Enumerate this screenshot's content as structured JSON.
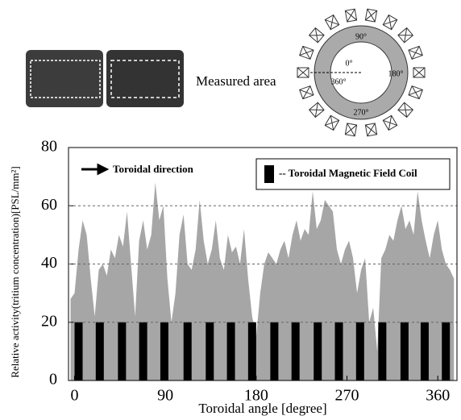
{
  "figure": {
    "measured_label": "Measured area",
    "angle_labels": [
      "90°",
      "0°",
      "360°",
      "180°",
      "270°"
    ]
  },
  "chart_data": {
    "type": "area",
    "xlabel": "Toroidal angle [degree]",
    "ylabel": "Relative activity(tritium concentration)[PSL/mm²]",
    "annotation": "Toroidal direction",
    "xlim": [
      -6,
      379
    ],
    "ylim": [
      0,
      80
    ],
    "xticks": [
      0,
      90,
      180,
      270,
      360
    ],
    "yticks": [
      0,
      20,
      40,
      60,
      80
    ],
    "grid": true,
    "series": [
      {
        "type": "area",
        "color": "#a6a6a6",
        "x": [
          -4,
          0,
          4,
          8,
          12,
          16,
          20,
          24,
          28,
          32,
          36,
          40,
          44,
          48,
          52,
          56,
          60,
          64,
          68,
          72,
          76,
          80,
          84,
          88,
          92,
          96,
          100,
          104,
          108,
          112,
          116,
          120,
          124,
          128,
          132,
          136,
          140,
          144,
          148,
          152,
          156,
          160,
          164,
          168,
          172,
          176,
          180,
          184,
          188,
          192,
          196,
          200,
          204,
          208,
          212,
          216,
          220,
          224,
          228,
          232,
          236,
          240,
          244,
          248,
          252,
          256,
          260,
          264,
          268,
          272,
          276,
          280,
          284,
          288,
          292,
          296,
          300,
          304,
          308,
          312,
          316,
          320,
          324,
          328,
          332,
          336,
          340,
          344,
          348,
          352,
          356,
          360,
          364,
          368,
          372,
          376
        ],
        "values": [
          28,
          30,
          45,
          55,
          50,
          35,
          22,
          38,
          40,
          36,
          45,
          42,
          50,
          46,
          58,
          40,
          22,
          48,
          55,
          45,
          50,
          68,
          55,
          60,
          35,
          20,
          30,
          50,
          57,
          40,
          38,
          45,
          62,
          48,
          40,
          45,
          55,
          42,
          38,
          50,
          44,
          46,
          40,
          52,
          35,
          22,
          15,
          30,
          40,
          44,
          42,
          40,
          45,
          48,
          42,
          50,
          55,
          48,
          52,
          50,
          65,
          52,
          55,
          62,
          60,
          58,
          45,
          40,
          45,
          48,
          42,
          30,
          38,
          42,
          20,
          25,
          10,
          42,
          45,
          50,
          48,
          55,
          60,
          52,
          55,
          50,
          65,
          55,
          48,
          42,
          50,
          55,
          45,
          40,
          38,
          35
        ]
      },
      {
        "type": "bar",
        "name": "-- Toroidal Magnetic Field Coil",
        "color": "#000000",
        "x": [
          4,
          25,
          47,
          68,
          89,
          112,
          134,
          155,
          176,
          198,
          219,
          241,
          262,
          283,
          305,
          327,
          347,
          368
        ],
        "values": [
          20,
          20,
          20,
          20,
          20,
          20,
          20,
          20,
          20,
          20,
          20,
          20,
          20,
          20,
          20,
          20,
          20,
          20
        ]
      }
    ]
  }
}
